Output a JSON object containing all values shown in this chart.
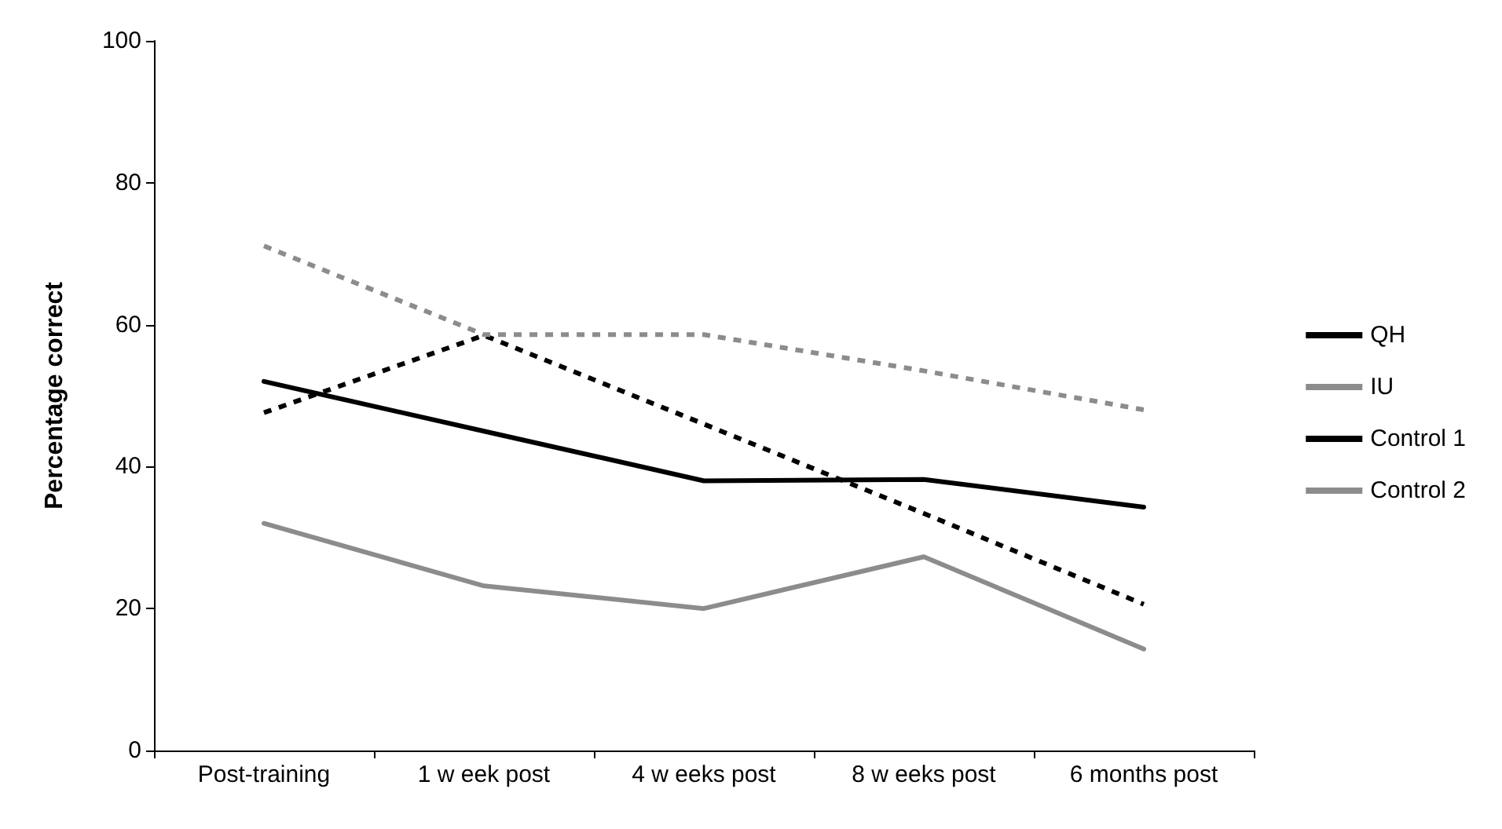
{
  "chart_data": {
    "type": "line",
    "ylabel": "Percentage correct",
    "categories": [
      "Post-training",
      "1 w eek post",
      "4 w eeks post",
      "8 w eeks post",
      "6 months post"
    ],
    "ylim": [
      0,
      100
    ],
    "yticks": [
      0,
      20,
      40,
      60,
      80,
      100
    ],
    "grid": false,
    "legend": "right",
    "marker": "none",
    "series": [
      {
        "name": "QH",
        "color": "#000000",
        "line_style": "solid",
        "values": [
          52,
          45,
          38,
          38.2,
          34.3
        ]
      },
      {
        "name": "IU",
        "color": "#8c8c8c",
        "line_style": "solid",
        "values": [
          32,
          23.2,
          20,
          27.3,
          14.3
        ]
      },
      {
        "name": "Control 1",
        "color": "#000000",
        "line_style": "dotted",
        "values": [
          47.6,
          58.5,
          46,
          33.4,
          20.6
        ]
      },
      {
        "name": "Control 2",
        "color": "#8c8c8c",
        "line_style": "dotted",
        "values": [
          71.1,
          58.6,
          58.6,
          53.5,
          48
        ]
      }
    ]
  }
}
